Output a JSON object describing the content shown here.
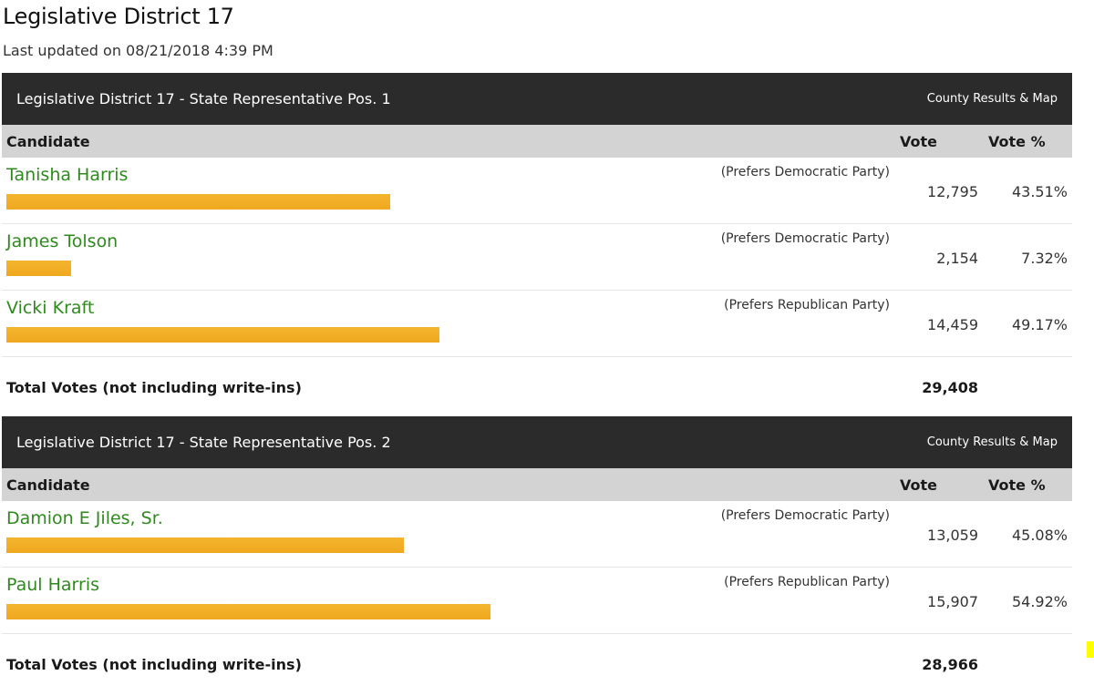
{
  "page": {
    "title": "Legislative District 17",
    "last_updated": "Last updated on 08/21/2018 4:39 PM"
  },
  "columns": {
    "candidate": "Candidate",
    "vote": "Vote",
    "vote_pct": "Vote %"
  },
  "races": [
    {
      "title": "Legislative District 17 - State Representative Pos. 1",
      "county_link": "County Results & Map",
      "candidates": [
        {
          "name": "Tanisha Harris",
          "party": "(Prefers Democratic Party)",
          "votes": "12,795",
          "pct": "43.51%",
          "share": 43.51
        },
        {
          "name": "James Tolson",
          "party": "(Prefers Democratic Party)",
          "votes": "2,154",
          "pct": "7.32%",
          "share": 7.32
        },
        {
          "name": "Vicki Kraft",
          "party": "(Prefers Republican Party)",
          "votes": "14,459",
          "pct": "49.17%",
          "share": 49.17
        }
      ],
      "total_label": "Total Votes (not including write-ins)",
      "total_votes": "29,408"
    },
    {
      "title": "Legislative District 17 - State Representative Pos. 2",
      "county_link": "County Results & Map",
      "candidates": [
        {
          "name": "Damion E Jiles, Sr.",
          "party": "(Prefers Democratic Party)",
          "votes": "13,059",
          "pct": "45.08%",
          "share": 45.08
        },
        {
          "name": "Paul Harris",
          "party": "(Prefers Republican Party)",
          "votes": "15,907",
          "pct": "54.92%",
          "share": 54.92
        }
      ],
      "total_label": "Total Votes (not including write-ins)",
      "total_votes": "28,966"
    }
  ]
}
